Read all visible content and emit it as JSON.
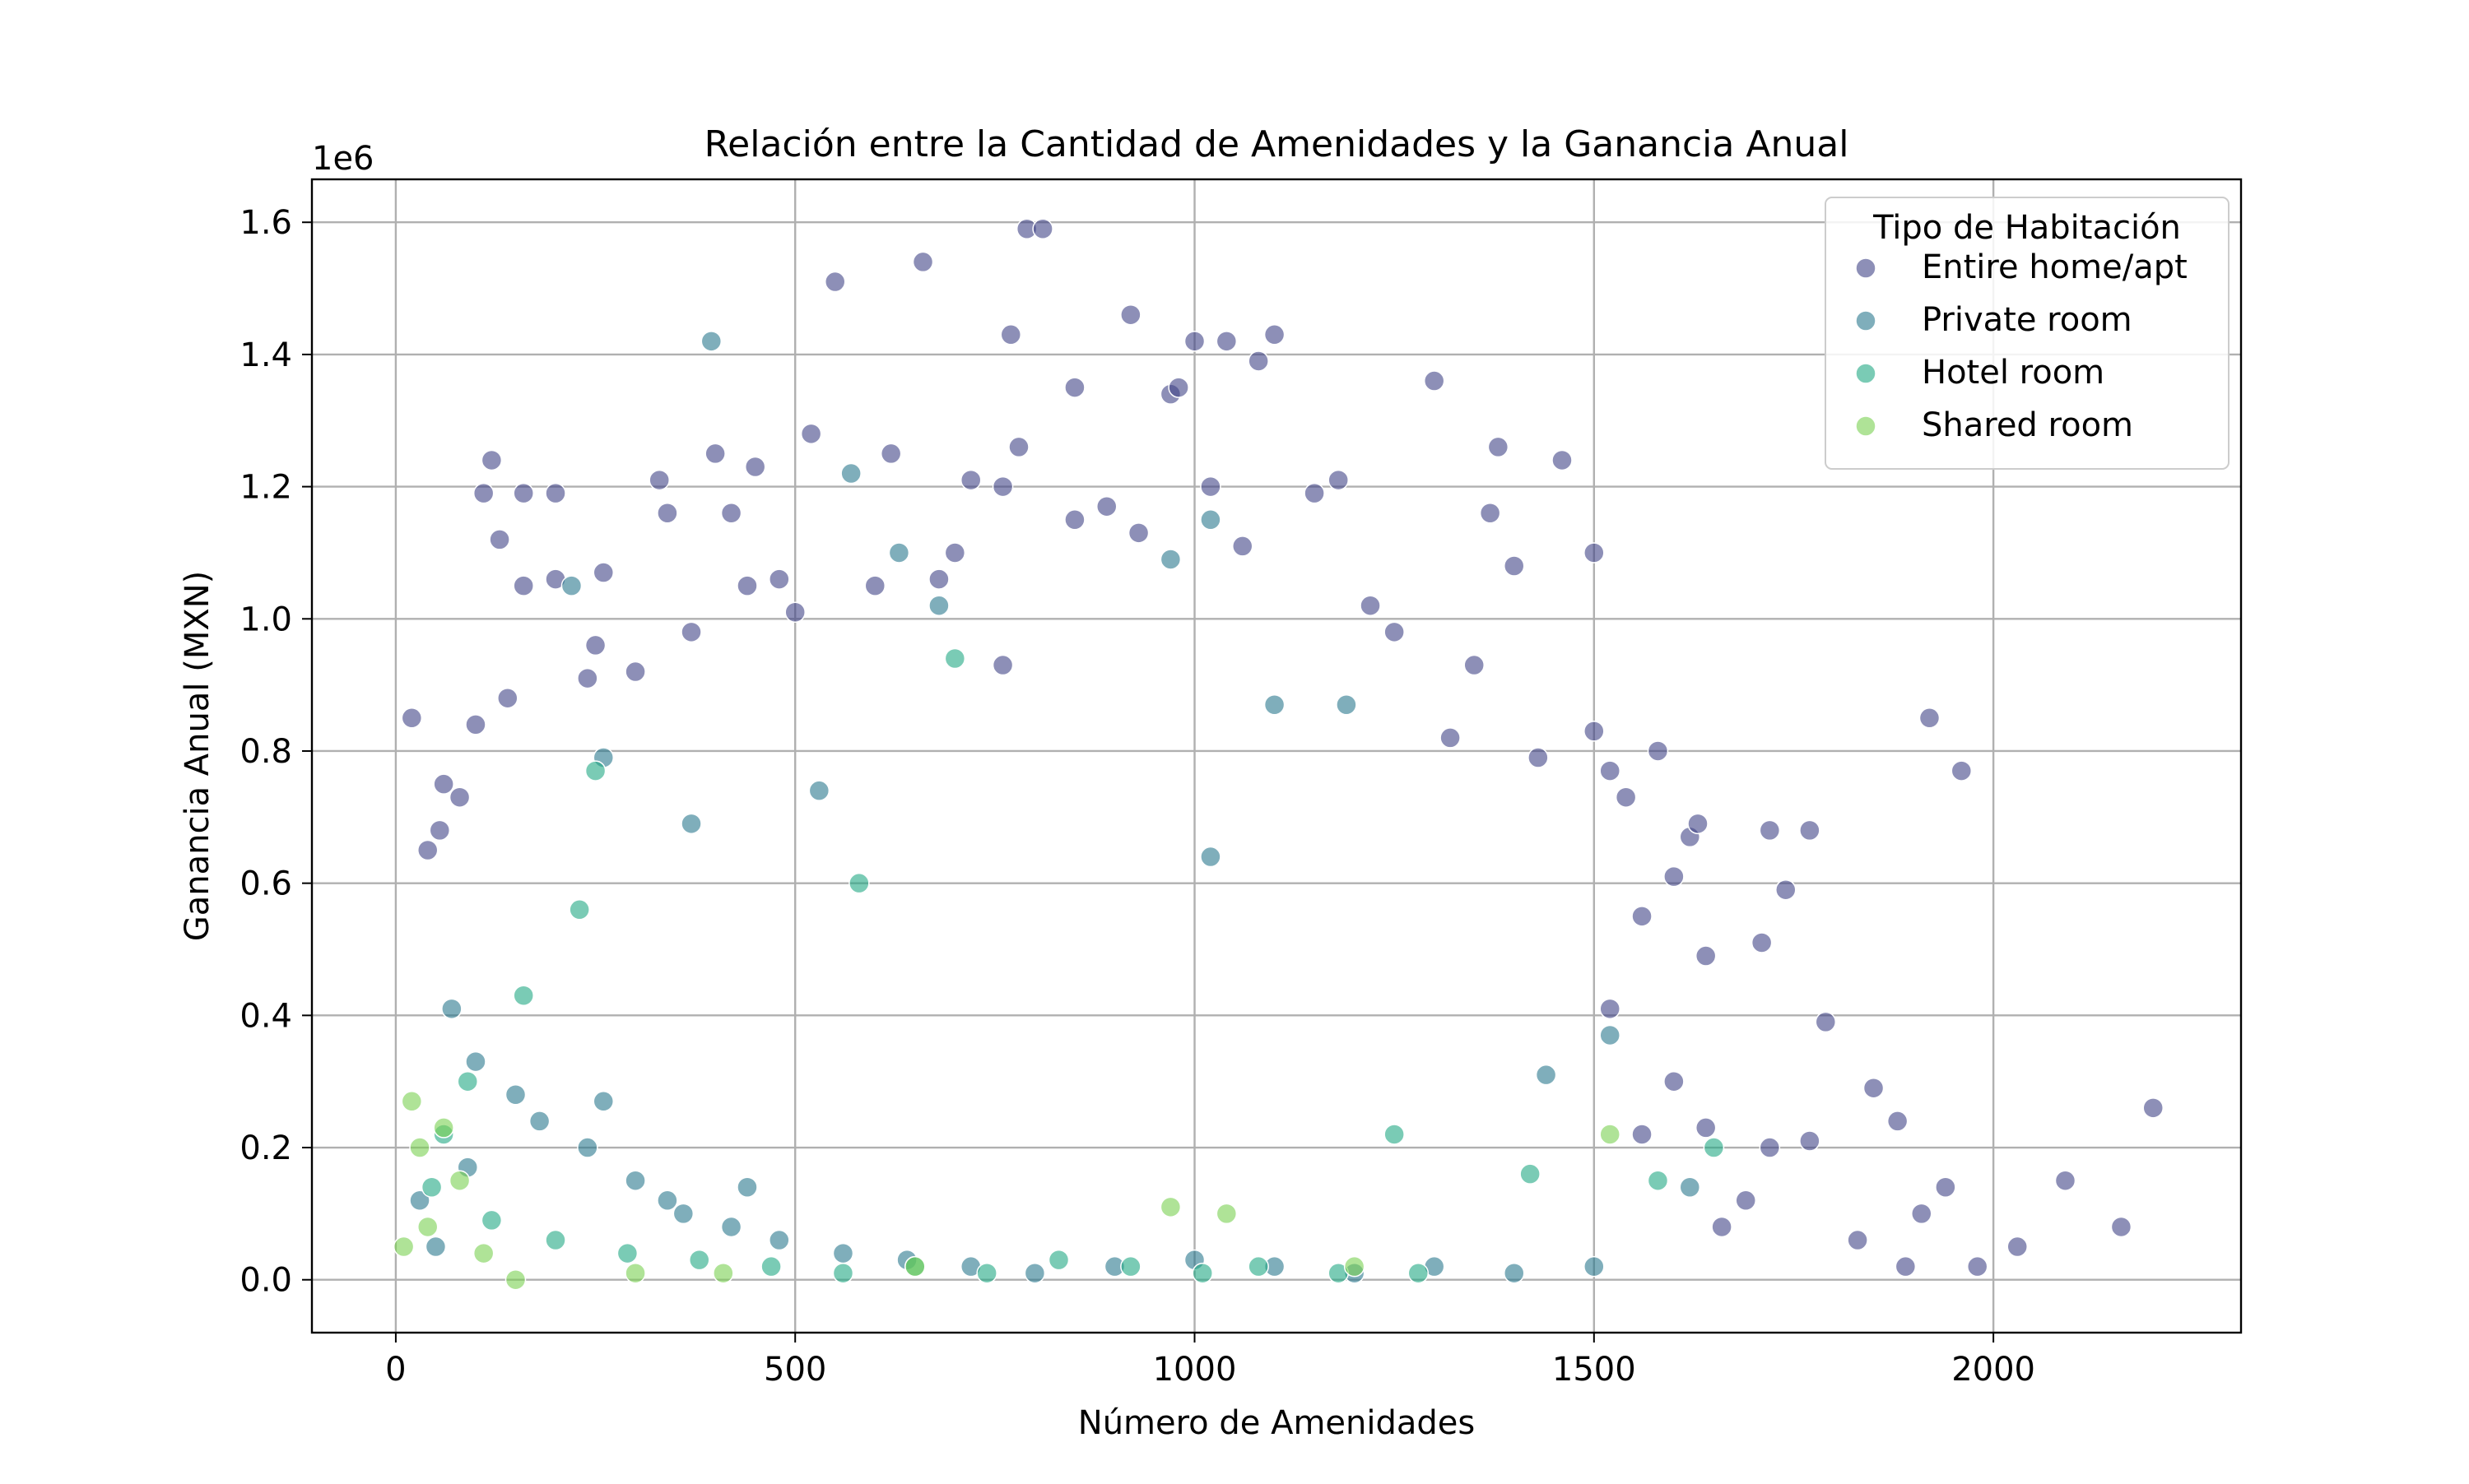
{
  "chart_data": {
    "type": "scatter",
    "title": "Relación entre la Cantidad de Amenidades y la Ganancia Anual",
    "xlabel": "Número de Amenidades",
    "ylabel": "Ganancia Anual (MXN)",
    "y_offset_label": "1e6",
    "xlim": [
      -105,
      2310
    ],
    "ylim": [
      -0.08,
      1.665
    ],
    "y_unit_multiplier": 1000000,
    "x_ticks": [
      0,
      500,
      1000,
      1500,
      2000
    ],
    "x_tick_labels": [
      "0",
      "500",
      "1000",
      "1500",
      "2000"
    ],
    "y_ticks": [
      0.0,
      0.2,
      0.4,
      0.6,
      0.8,
      1.0,
      1.2,
      1.4,
      1.6
    ],
    "y_tick_labels": [
      "0.0",
      "0.2",
      "0.4",
      "0.6",
      "0.8",
      "1.0",
      "1.2",
      "1.4",
      "1.6"
    ],
    "grid": true,
    "legend": {
      "title": "Tipo de Habitación",
      "placement": "top-right"
    },
    "series": [
      {
        "name": "Entire home/apt",
        "color": "#414487",
        "points": [
          [
            20,
            0.85
          ],
          [
            120,
            1.24
          ],
          [
            160,
            1.19
          ],
          [
            200,
            1.19
          ],
          [
            260,
            1.07
          ],
          [
            330,
            1.21
          ],
          [
            340,
            1.16
          ],
          [
            370,
            0.98
          ],
          [
            400,
            1.25
          ],
          [
            450,
            1.23
          ],
          [
            520,
            1.28
          ],
          [
            550,
            1.51
          ],
          [
            620,
            1.25
          ],
          [
            660,
            1.54
          ],
          [
            720,
            1.21
          ],
          [
            760,
            1.2
          ],
          [
            770,
            1.43
          ],
          [
            780,
            1.26
          ],
          [
            790,
            1.59
          ],
          [
            810,
            1.59
          ],
          [
            850,
            1.35
          ],
          [
            920,
            1.46
          ],
          [
            970,
            1.34
          ],
          [
            980,
            1.35
          ],
          [
            1000,
            1.42
          ],
          [
            1020,
            1.2
          ],
          [
            1040,
            1.42
          ],
          [
            1100,
            1.43
          ],
          [
            1080,
            1.39
          ],
          [
            1180,
            1.21
          ],
          [
            1300,
            1.36
          ],
          [
            1380,
            1.26
          ],
          [
            1460,
            1.24
          ],
          [
            1500,
            1.1
          ],
          [
            1400,
            1.08
          ],
          [
            1370,
            1.16
          ],
          [
            1500,
            0.83
          ],
          [
            1580,
            0.8
          ],
          [
            1520,
            0.77
          ],
          [
            1920,
            0.85
          ],
          [
            1960,
            0.77
          ],
          [
            1720,
            0.68
          ],
          [
            1770,
            0.68
          ],
          [
            1740,
            0.59
          ],
          [
            1710,
            0.51
          ],
          [
            1620,
            0.67
          ],
          [
            1630,
            0.69
          ],
          [
            1640,
            0.49
          ],
          [
            1600,
            0.61
          ],
          [
            1790,
            0.39
          ],
          [
            1850,
            0.29
          ],
          [
            1880,
            0.24
          ],
          [
            1940,
            0.14
          ],
          [
            1910,
            0.1
          ],
          [
            2090,
            0.15
          ],
          [
            2160,
            0.08
          ],
          [
            2200,
            0.26
          ],
          [
            2030,
            0.05
          ],
          [
            1980,
            0.02
          ],
          [
            1890,
            0.02
          ],
          [
            1830,
            0.06
          ],
          [
            1770,
            0.21
          ],
          [
            1720,
            0.2
          ],
          [
            1690,
            0.12
          ],
          [
            1660,
            0.08
          ],
          [
            1640,
            0.23
          ],
          [
            1600,
            0.3
          ],
          [
            1560,
            0.22
          ],
          [
            1520,
            0.41
          ],
          [
            1540,
            0.73
          ],
          [
            1560,
            0.55
          ],
          [
            1430,
            0.79
          ],
          [
            1320,
            0.82
          ],
          [
            1350,
            0.93
          ],
          [
            1250,
            0.98
          ],
          [
            1220,
            1.02
          ],
          [
            1150,
            1.19
          ],
          [
            1060,
            1.11
          ],
          [
            930,
            1.13
          ],
          [
            890,
            1.17
          ],
          [
            850,
            1.15
          ],
          [
            760,
            0.93
          ],
          [
            700,
            1.1
          ],
          [
            680,
            1.06
          ],
          [
            600,
            1.05
          ],
          [
            500,
            1.01
          ],
          [
            480,
            1.06
          ],
          [
            440,
            1.05
          ],
          [
            420,
            1.16
          ],
          [
            300,
            0.92
          ],
          [
            250,
            0.96
          ],
          [
            240,
            0.91
          ],
          [
            200,
            1.06
          ],
          [
            160,
            1.05
          ],
          [
            140,
            0.88
          ],
          [
            130,
            1.12
          ],
          [
            110,
            1.19
          ],
          [
            100,
            0.84
          ],
          [
            80,
            0.73
          ],
          [
            60,
            0.75
          ],
          [
            55,
            0.68
          ],
          [
            40,
            0.65
          ]
        ]
      },
      {
        "name": "Private room",
        "color": "#2a788e",
        "points": [
          [
            395,
            1.42
          ],
          [
            570,
            1.22
          ],
          [
            630,
            1.1
          ],
          [
            680,
            1.02
          ],
          [
            970,
            1.09
          ],
          [
            1020,
            1.15
          ],
          [
            1100,
            0.87
          ],
          [
            1190,
            0.87
          ],
          [
            220,
            1.05
          ],
          [
            260,
            0.79
          ],
          [
            370,
            0.69
          ],
          [
            530,
            0.74
          ],
          [
            1020,
            0.64
          ],
          [
            1440,
            0.31
          ],
          [
            1520,
            0.37
          ],
          [
            1620,
            0.14
          ],
          [
            70,
            0.41
          ],
          [
            100,
            0.33
          ],
          [
            150,
            0.28
          ],
          [
            240,
            0.2
          ],
          [
            300,
            0.15
          ],
          [
            360,
            0.1
          ],
          [
            420,
            0.08
          ],
          [
            480,
            0.06
          ],
          [
            560,
            0.04
          ],
          [
            640,
            0.03
          ],
          [
            720,
            0.02
          ],
          [
            800,
            0.01
          ],
          [
            900,
            0.02
          ],
          [
            1000,
            0.03
          ],
          [
            1100,
            0.02
          ],
          [
            1200,
            0.01
          ],
          [
            1300,
            0.02
          ],
          [
            1400,
            0.01
          ],
          [
            1500,
            0.02
          ],
          [
            30,
            0.12
          ],
          [
            50,
            0.05
          ],
          [
            90,
            0.17
          ],
          [
            180,
            0.24
          ],
          [
            260,
            0.27
          ],
          [
            340,
            0.12
          ],
          [
            440,
            0.14
          ]
        ]
      },
      {
        "name": "Hotel room",
        "color": "#22a884",
        "points": [
          [
            700,
            0.94
          ],
          [
            580,
            0.6
          ],
          [
            250,
            0.77
          ],
          [
            230,
            0.56
          ],
          [
            160,
            0.43
          ],
          [
            90,
            0.3
          ],
          [
            60,
            0.22
          ],
          [
            45,
            0.14
          ],
          [
            120,
            0.09
          ],
          [
            200,
            0.06
          ],
          [
            290,
            0.04
          ],
          [
            380,
            0.03
          ],
          [
            470,
            0.02
          ],
          [
            560,
            0.01
          ],
          [
            650,
            0.02
          ],
          [
            740,
            0.01
          ],
          [
            830,
            0.03
          ],
          [
            920,
            0.02
          ],
          [
            1010,
            0.01
          ],
          [
            1080,
            0.02
          ],
          [
            1180,
            0.01
          ],
          [
            1280,
            0.01
          ],
          [
            1580,
            0.15
          ],
          [
            1650,
            0.2
          ],
          [
            1420,
            0.16
          ],
          [
            1250,
            0.22
          ]
        ]
      },
      {
        "name": "Shared room",
        "color": "#7ad151",
        "points": [
          [
            20,
            0.27
          ],
          [
            30,
            0.2
          ],
          [
            60,
            0.23
          ],
          [
            80,
            0.15
          ],
          [
            150,
            0.0
          ],
          [
            300,
            0.01
          ],
          [
            410,
            0.01
          ],
          [
            650,
            0.02
          ],
          [
            970,
            0.11
          ],
          [
            1040,
            0.1
          ],
          [
            1200,
            0.02
          ],
          [
            1520,
            0.22
          ],
          [
            10,
            0.05
          ],
          [
            40,
            0.08
          ],
          [
            110,
            0.04
          ]
        ]
      }
    ]
  }
}
